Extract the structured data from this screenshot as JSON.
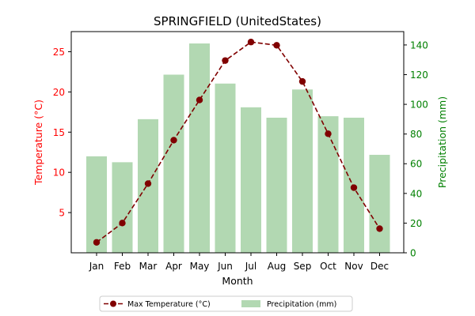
{
  "chart_data": {
    "type": "bar+line",
    "title": "SPRINGFIELD (UnitedStates)",
    "xlabel": "Month",
    "categories": [
      "Jan",
      "Feb",
      "Mar",
      "Apr",
      "May",
      "Jun",
      "Jul",
      "Aug",
      "Sep",
      "Oct",
      "Nov",
      "Dec"
    ],
    "left_axis": {
      "label": "Temperature (°C)",
      "color": "#ff0000",
      "ticks": [
        5,
        10,
        15,
        20,
        25
      ],
      "ylim": [
        0,
        27.5
      ]
    },
    "right_axis": {
      "label": "Precipitation (mm)",
      "color": "#008000",
      "ticks": [
        0,
        20,
        40,
        60,
        80,
        100,
        120,
        140
      ],
      "ylim": [
        0,
        149
      ]
    },
    "series": [
      {
        "name": "Max Temperature (°C)",
        "kind": "line",
        "axis": "left",
        "color": "#800000",
        "values": [
          1.3,
          3.7,
          8.6,
          14.0,
          19.0,
          23.9,
          26.2,
          25.8,
          21.3,
          14.8,
          8.1,
          3.0
        ]
      },
      {
        "name": "Precipitation (mm)",
        "kind": "bar",
        "axis": "right",
        "color": "#b2d8b2",
        "values": [
          65,
          61,
          90,
          120,
          141,
          114,
          98,
          91,
          110,
          92,
          91,
          66
        ]
      }
    ],
    "legend": {
      "placement": "below-center"
    }
  }
}
